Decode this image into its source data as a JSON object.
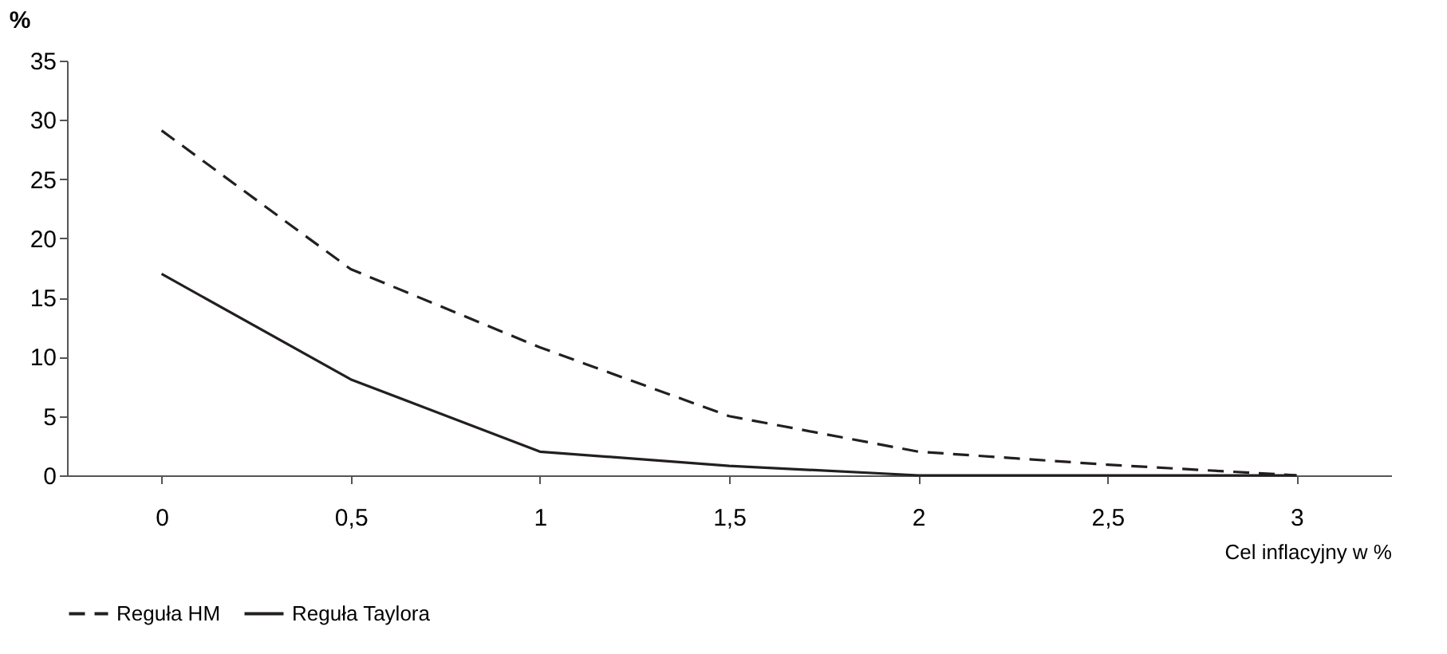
{
  "chart_data": {
    "type": "line",
    "xlabel": "Cel inflacyjny w %",
    "ylabel": "%",
    "categories": [
      "0",
      "0,5",
      "1",
      "1,5",
      "2",
      "2,5",
      "3"
    ],
    "series": [
      {
        "name": "Reguła HM",
        "color": "#231f20",
        "line_style": "dashed",
        "values": [
          29.1,
          17.4,
          10.8,
          5.0,
          2.0,
          0.9,
          0
        ]
      },
      {
        "name": "Reguła Taylora",
        "color": "#231f20",
        "line_style": "solid",
        "values": [
          17.0,
          8.1,
          2.0,
          0.8,
          0,
          0,
          0
        ]
      }
    ],
    "ylim": [
      0,
      35
    ],
    "yticks": [
      0,
      5,
      10,
      15,
      20,
      25,
      30,
      35
    ],
    "grid": false,
    "legend": "bottom",
    "marker": "none"
  }
}
